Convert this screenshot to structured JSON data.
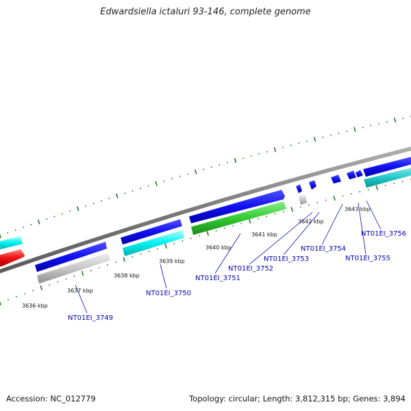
{
  "title": "Edwardsiella ictaluri 93-146, complete genome",
  "footer": {
    "accession": "Accession: NC_012779",
    "summary": "Topology: circular; Length: 3,812,315 bp; Genes: 3,894"
  },
  "colors": {
    "backbone": "#808080",
    "tick": "#1a7a1a",
    "label": "#0000b4",
    "blue": "#0a0aee",
    "cyan": "#00dede",
    "teal": "#22c6c6",
    "green": "#33cc33",
    "gray": "#c6c6c6",
    "red": "#ee1111"
  },
  "ticks": [
    "3636 kbp",
    "3637 kbp",
    "3638 kbp",
    "3639 kbp",
    "3640 kbp",
    "3641 kbp",
    "3642 kbp",
    "3643 kbp"
  ],
  "gene_labels": [
    "NT01EI_3749",
    "NT01EI_3750",
    "NT01EI_3751",
    "NT01EI_3752",
    "NT01EI_3753",
    "NT01EI_3754",
    "NT01EI_3755",
    "NT01EI_3756"
  ]
}
